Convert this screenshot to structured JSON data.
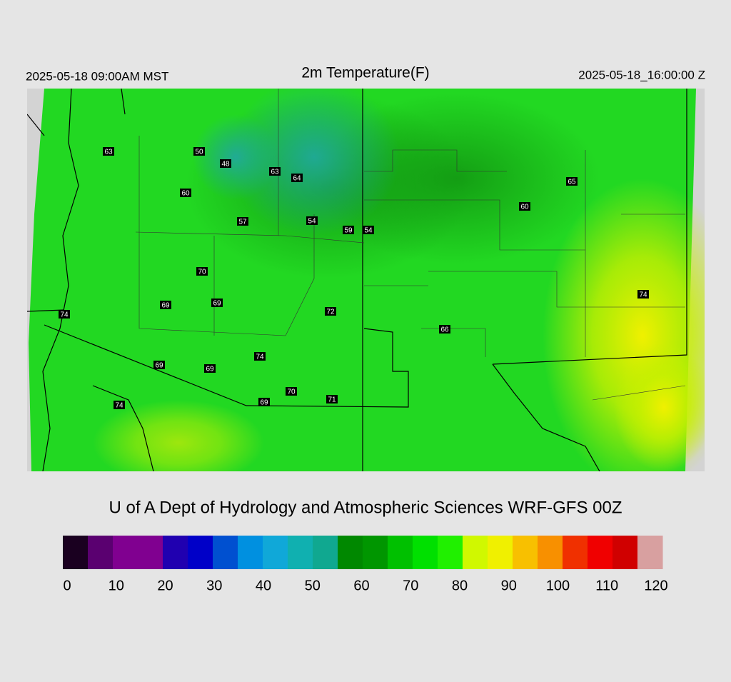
{
  "header": {
    "valid_time_local": "2025-05-18 09:00AM MST",
    "title": "2m Temperature(F)",
    "valid_time_utc": "2025-05-18_16:00:00 Z"
  },
  "stations": [
    63,
    50,
    48,
    63,
    64,
    60,
    57,
    54,
    59,
    54,
    65,
    60,
    70,
    69,
    69,
    72,
    74,
    66,
    74,
    74,
    69,
    69,
    70,
    69,
    71,
    74
  ],
  "credit": "U of A Dept of Hydrology and Atmospheric Sciences WRF-GFS 00Z",
  "colorbar": {
    "lim": [
      0,
      120
    ],
    "ticks": [
      0,
      10,
      20,
      30,
      40,
      50,
      60,
      70,
      80,
      90,
      100,
      110,
      120
    ],
    "colors": [
      "#1a0020",
      "#5a0070",
      "#800090",
      "#800090",
      "#2000b0",
      "#0000c8",
      "#0050d0",
      "#0090e0",
      "#10a8d8",
      "#10b0b0",
      "#10a890",
      "#008800",
      "#009600",
      "#00c000",
      "#00e000",
      "#20f000",
      "#d0f800",
      "#f0f000",
      "#f8c000",
      "#f89000",
      "#f03000",
      "#f00000",
      "#d00000",
      "#d8a0a0"
    ]
  }
}
